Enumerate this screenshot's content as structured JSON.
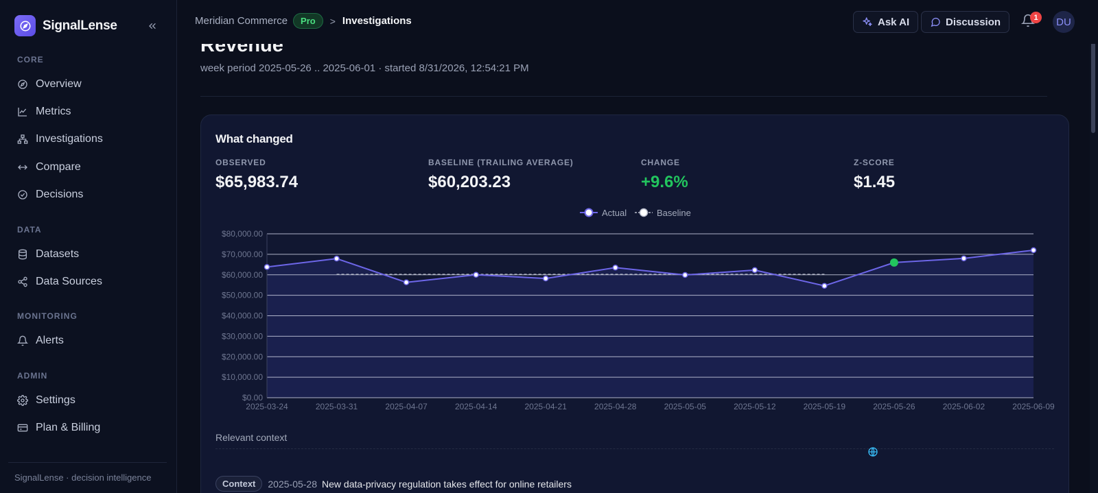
{
  "brand": {
    "name": "SignalLense"
  },
  "sidebar": {
    "sections": [
      {
        "label": "CORE",
        "items": [
          {
            "label": "Overview",
            "icon": "compass-icon"
          },
          {
            "label": "Metrics",
            "icon": "line-chart-icon"
          },
          {
            "label": "Investigations",
            "icon": "sitemap-icon"
          },
          {
            "label": "Compare",
            "icon": "arrows-left-right-icon"
          },
          {
            "label": "Decisions",
            "icon": "check-circle-icon"
          }
        ]
      },
      {
        "label": "DATA",
        "items": [
          {
            "label": "Datasets",
            "icon": "database-icon"
          },
          {
            "label": "Data Sources",
            "icon": "share-icon"
          }
        ]
      },
      {
        "label": "MONITORING",
        "items": [
          {
            "label": "Alerts",
            "icon": "bell-icon"
          }
        ]
      },
      {
        "label": "ADMIN",
        "items": [
          {
            "label": "Settings",
            "icon": "gear-icon"
          },
          {
            "label": "Plan & Billing",
            "icon": "credit-card-icon"
          }
        ]
      }
    ],
    "footer": "SignalLense · decision intelligence"
  },
  "header": {
    "org": "Meridian Commerce",
    "plan_badge": "Pro",
    "separator": ">",
    "current": "Investigations",
    "ask_ai": "Ask AI",
    "discussion": "Discussion",
    "notification_count": "1",
    "avatar_initials": "DU"
  },
  "page": {
    "title": "Revenue",
    "subtitle": "week period 2025-05-26 .. 2025-06-01 · started 8/31/2026, 12:54:21 PM"
  },
  "card": {
    "title": "What changed",
    "stats": [
      {
        "label": "OBSERVED",
        "value": "$65,983.74"
      },
      {
        "label": "BASELINE (TRAILING AVERAGE)",
        "value": "$60,203.23"
      },
      {
        "label": "CHANGE",
        "value": "+9.6%"
      },
      {
        "label": "Z-SCORE",
        "value": "$1.45"
      }
    ],
    "context_label": "Relevant context",
    "context_item": {
      "tag": "Context",
      "date": "2025-05-28",
      "text": "New data-privacy regulation takes effect for online retailers"
    }
  },
  "colors": {
    "accent": "#7c6cf6",
    "actual_line": "#6d66e8",
    "highlight_point": "#22c55e",
    "positive": "#22c55e",
    "badge_red": "#ef4444"
  },
  "chart_data": {
    "type": "line",
    "categories": [
      "2025-03-24",
      "2025-03-31",
      "2025-04-07",
      "2025-04-14",
      "2025-04-21",
      "2025-04-28",
      "2025-05-05",
      "2025-05-12",
      "2025-05-19",
      "2025-05-26",
      "2025-06-02",
      "2025-06-09"
    ],
    "series": [
      {
        "name": "Actual",
        "values": [
          63800,
          67900,
          56300,
          60000,
          58200,
          63500,
          59900,
          62300,
          54600,
          65984,
          68000,
          72000
        ]
      },
      {
        "name": "Baseline",
        "values": [
          null,
          60203,
          60203,
          60203,
          60203,
          60203,
          60203,
          60203,
          60203,
          null,
          null,
          null
        ]
      }
    ],
    "highlight_category": "2025-05-26",
    "yticks": [
      "$0.00",
      "$10,000.00",
      "$20,000.00",
      "$30,000.00",
      "$40,000.00",
      "$50,000.00",
      "$60,000.00",
      "$70,000.00",
      "$80,000.00"
    ],
    "ylim": [
      0,
      80000
    ],
    "grid": true,
    "legend_position": "top-center"
  }
}
